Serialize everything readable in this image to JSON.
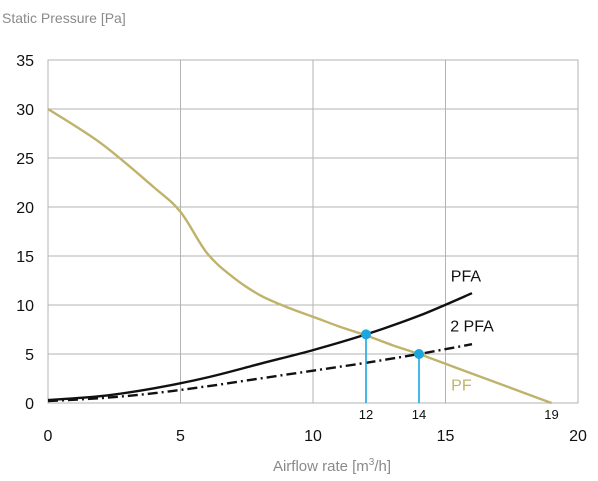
{
  "chart_data": {
    "type": "line",
    "ylabel": "Static Pressure [Pa]",
    "xlabel_main": "Airflow rate [m",
    "xlabel_sup": "3",
    "xlabel_tail": "/h]",
    "xlim": [
      0,
      20
    ],
    "ylim": [
      0,
      35
    ],
    "x_ticks": [
      0,
      5,
      10,
      15,
      20
    ],
    "y_ticks": [
      0,
      5,
      10,
      15,
      20,
      25,
      30,
      35
    ],
    "grid": true,
    "colors": {
      "PF": "#bfb36b",
      "PFA": "#111111",
      "2 PFA": "#111111",
      "marker": "#1aa7e0",
      "grid": "#b3b3b3"
    },
    "series": [
      {
        "name": "PF",
        "style": "solid",
        "points": [
          [
            0,
            30
          ],
          [
            2,
            26.5
          ],
          [
            4,
            22
          ],
          [
            5,
            19.5
          ],
          [
            6,
            15.3
          ],
          [
            7,
            12.8
          ],
          [
            8,
            11
          ],
          [
            9,
            9.8
          ],
          [
            10,
            8.8
          ],
          [
            11,
            7.8
          ],
          [
            12,
            6.9
          ],
          [
            13,
            5.9
          ],
          [
            14,
            5.0
          ],
          [
            15,
            4.0
          ],
          [
            16,
            3.0
          ],
          [
            17,
            2.0
          ],
          [
            18,
            1.0
          ],
          [
            19,
            0
          ]
        ]
      },
      {
        "name": "PFA",
        "style": "solid",
        "points": [
          [
            0,
            0.3
          ],
          [
            2,
            0.7
          ],
          [
            4,
            1.5
          ],
          [
            6,
            2.6
          ],
          [
            8,
            4.0
          ],
          [
            10,
            5.4
          ],
          [
            12,
            7.0
          ],
          [
            14,
            8.9
          ],
          [
            16,
            11.2
          ]
        ]
      },
      {
        "name": "2 PFA",
        "style": "dashdot",
        "points": [
          [
            0,
            0.2
          ],
          [
            2,
            0.5
          ],
          [
            4,
            1.0
          ],
          [
            6,
            1.7
          ],
          [
            8,
            2.5
          ],
          [
            10,
            3.3
          ],
          [
            12,
            4.1
          ],
          [
            14,
            5.0
          ],
          [
            16,
            6.0
          ]
        ]
      }
    ],
    "intersections": [
      {
        "x": 12,
        "y": 7.0,
        "label": "12"
      },
      {
        "x": 14,
        "y": 5.0,
        "label": "14"
      }
    ],
    "extra_x_markers": [
      {
        "x": 19,
        "label": "19"
      }
    ]
  }
}
